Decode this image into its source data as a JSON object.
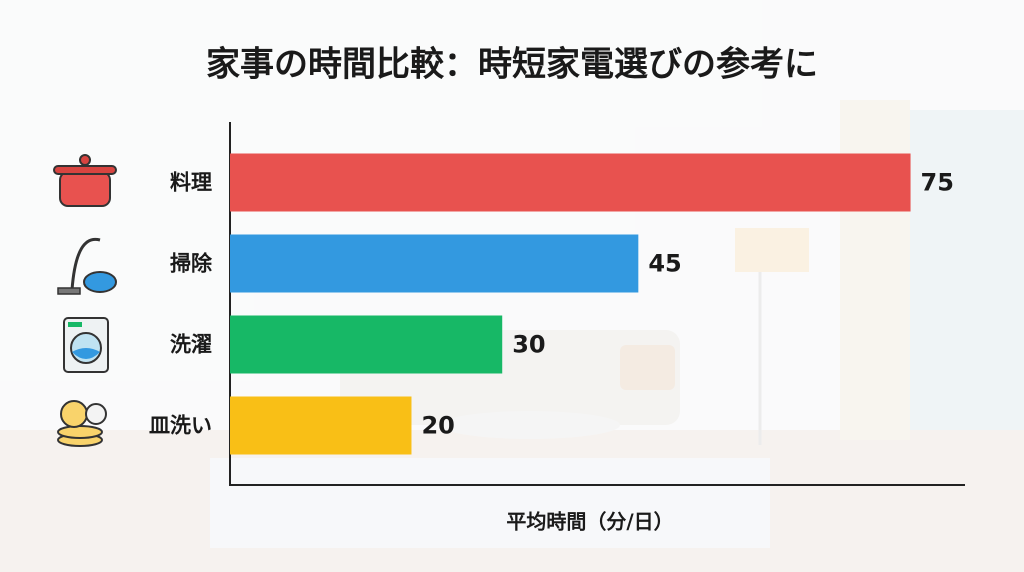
{
  "chart_data": {
    "type": "bar",
    "orientation": "horizontal",
    "title": "家事の時間比較：時短家電選びの参考に",
    "categories": [
      "料理",
      "掃除",
      "洗濯",
      "皿洗い"
    ],
    "values": [
      75,
      45,
      30,
      20
    ],
    "colors": [
      "#e8524f",
      "#3399e0",
      "#17b866",
      "#f9bf16"
    ],
    "xlabel": "平均時間（分/日）",
    "xlim": [
      0,
      81
    ]
  }
}
